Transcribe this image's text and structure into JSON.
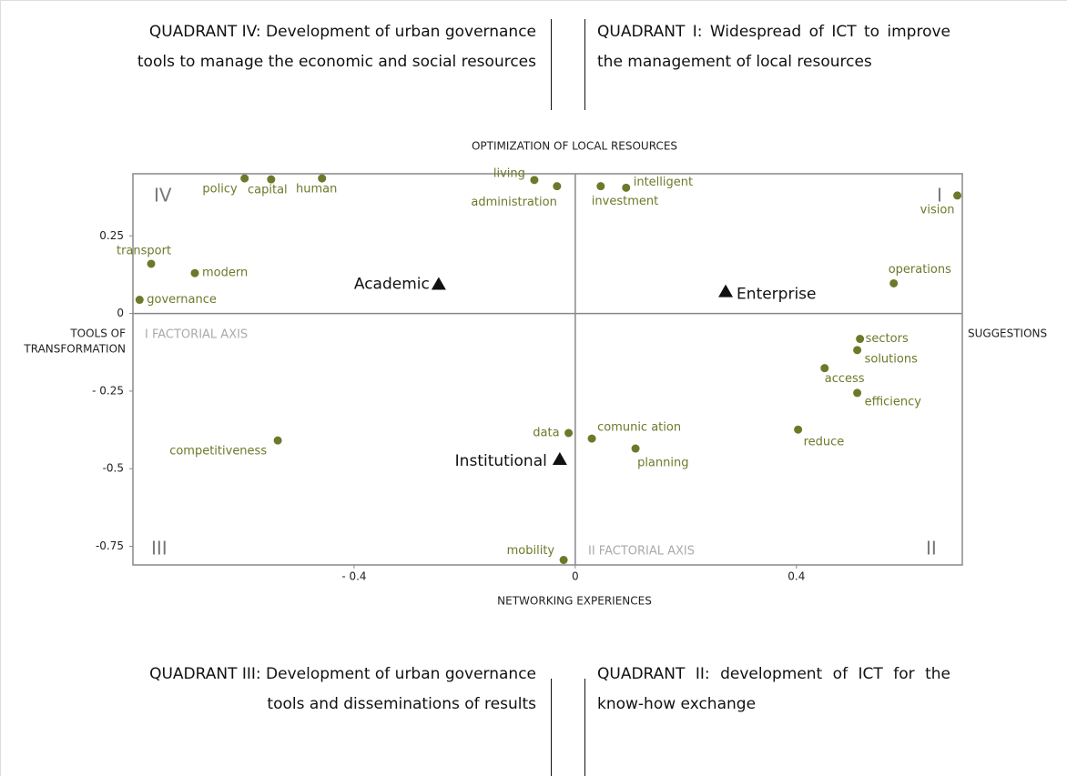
{
  "quadrants": {
    "top_left": "QUADRANT IV: Development of urban governance tools to manage the economic and social resources",
    "top_right": "QUADRANT I: Widespread of ICT to improve the management of local resources",
    "bottom_left": "QUADRANT III: Development of urban governance tools and disseminations of results",
    "bottom_right": "QUADRANT II: development of ICT for the know-how exchange"
  },
  "chart_data": {
    "type": "scatter",
    "top_label": "OPTIMIZATION OF LOCAL RESOURCES",
    "bottom_label": "NETWORKING EXPERIENCES",
    "left_label": [
      "TOOLS OF",
      "TRANSFORMATION"
    ],
    "right_label": "SUGGESTIONS",
    "quadrant_numerals": [
      "IV",
      "I",
      "III",
      "II"
    ],
    "axis_names": [
      "I FACTORIAL AXIS",
      "II FACTORIAL AXIS"
    ],
    "xlim": [
      -0.8,
      0.7
    ],
    "ylim": [
      -0.81,
      0.45
    ],
    "xticks": [
      {
        "value": -0.4,
        "label": "- 0.4"
      },
      0,
      0.4
    ],
    "yticks": [
      0.25,
      0,
      {
        "value": -0.25,
        "label": "- 0.25"
      },
      {
        "value": -0.5,
        "label": "-0.5"
      },
      {
        "value": -0.75,
        "label": "-0.75"
      }
    ],
    "grid": false,
    "colors": {
      "circle": "#6b7a2a",
      "triangle": "#111111"
    },
    "points": [
      {
        "label": "policy",
        "x": -0.598,
        "y": 0.435,
        "marker": "circle"
      },
      {
        "label": "capital",
        "x": -0.55,
        "y": 0.432,
        "marker": "circle"
      },
      {
        "label": "human",
        "x": -0.458,
        "y": 0.435,
        "marker": "circle"
      },
      {
        "label": "living",
        "x": -0.074,
        "y": 0.43,
        "marker": "circle"
      },
      {
        "label": "administration",
        "x": -0.033,
        "y": 0.41,
        "marker": "circle"
      },
      {
        "label": "intelligent",
        "x": 0.092,
        "y": 0.405,
        "marker": "circle"
      },
      {
        "label": "investment",
        "x": 0.046,
        "y": 0.41,
        "marker": "circle"
      },
      {
        "label": "vision",
        "x": 0.691,
        "y": 0.38,
        "marker": "circle"
      },
      {
        "label": "transport",
        "x": -0.767,
        "y": 0.16,
        "marker": "circle"
      },
      {
        "label": "modern",
        "x": -0.688,
        "y": 0.13,
        "marker": "circle"
      },
      {
        "label": "governance",
        "x": -0.788,
        "y": 0.044,
        "marker": "circle"
      },
      {
        "label": "operations",
        "x": 0.576,
        "y": 0.097,
        "marker": "circle"
      },
      {
        "label": "Academic",
        "x": -0.247,
        "y": 0.094,
        "marker": "triangle"
      },
      {
        "label": "Enterprise",
        "x": 0.272,
        "y": 0.07,
        "marker": "triangle"
      },
      {
        "label": "sectors",
        "x": 0.515,
        "y": -0.082,
        "marker": "circle"
      },
      {
        "label": "solutions",
        "x": 0.51,
        "y": -0.118,
        "marker": "circle"
      },
      {
        "label": "access",
        "x": 0.451,
        "y": -0.176,
        "marker": "circle"
      },
      {
        "label": "efficiency",
        "x": 0.51,
        "y": -0.256,
        "marker": "circle"
      },
      {
        "label": "reduce",
        "x": 0.403,
        "y": -0.374,
        "marker": "circle"
      },
      {
        "label": "competitiveness",
        "x": -0.538,
        "y": -0.409,
        "marker": "circle"
      },
      {
        "label": "data",
        "x": -0.012,
        "y": -0.385,
        "marker": "circle"
      },
      {
        "label": "comunic ation",
        "x": 0.03,
        "y": -0.403,
        "marker": "circle"
      },
      {
        "label": "planning",
        "x": 0.109,
        "y": -0.435,
        "marker": "circle"
      },
      {
        "label": "Institutional",
        "x": -0.028,
        "y": -0.47,
        "marker": "triangle"
      },
      {
        "label": "mobility",
        "x": -0.021,
        "y": -0.794,
        "marker": "circle"
      }
    ]
  }
}
